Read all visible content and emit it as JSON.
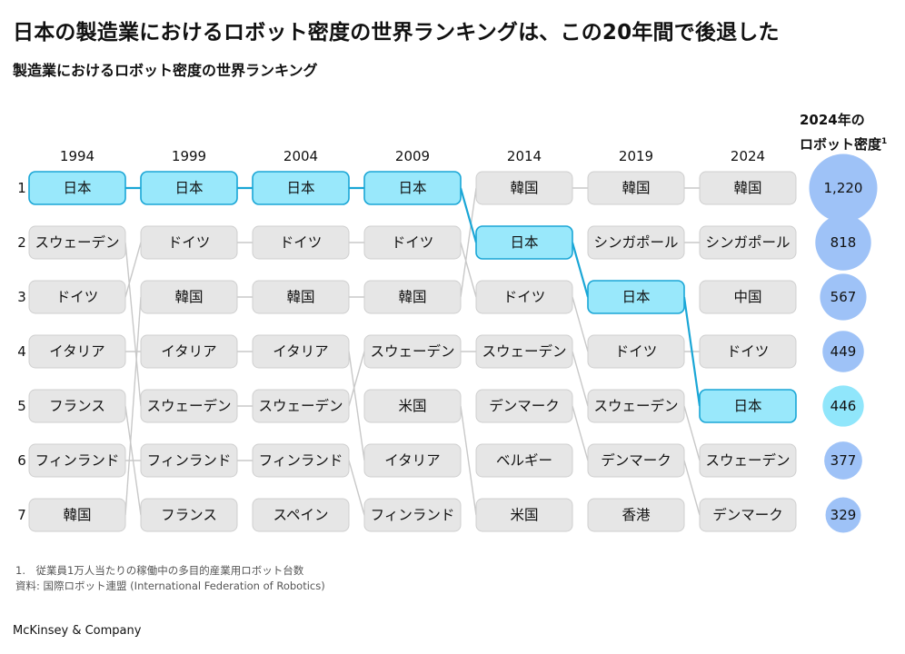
{
  "header": {
    "title": "日本の製造業におけるロボット密度の世界ランキングは、この20年間で後退した",
    "subtitle": "製造業におけるロボット密度の世界ランキング"
  },
  "density_header": {
    "line1": "2024年の",
    "line2": "ロボット密度",
    "footnote_mark": "1"
  },
  "footnotes": {
    "note1": "1.　従業員1万人当たりの稼働中の多目的産業用ロボット台数",
    "source": "資料: 国際ロボット連盟 (International Federation of Robotics)"
  },
  "brand": "McKinsey & Company",
  "colors": {
    "highlight_fill": "#99e8fb",
    "highlight_stroke": "#1aa6d6",
    "box_fill": "#e6e6e6",
    "box_stroke": "#cfcfcf",
    "connector": "#c8c8c8",
    "bubble_blue": "#9ec2f7",
    "bubble_japan": "#90e6fb"
  },
  "chart_data": {
    "type": "table",
    "highlight": "日本",
    "years": [
      "1994",
      "1999",
      "2004",
      "2009",
      "2014",
      "2019",
      "2024"
    ],
    "ranks": [
      "1",
      "2",
      "3",
      "4",
      "5",
      "6",
      "7"
    ],
    "rankings": {
      "1994": [
        "日本",
        "スウェーデン",
        "ドイツ",
        "イタリア",
        "フランス",
        "フィンランド",
        "韓国"
      ],
      "1999": [
        "日本",
        "ドイツ",
        "韓国",
        "イタリア",
        "スウェーデン",
        "フィンランド",
        "フランス"
      ],
      "2004": [
        "日本",
        "ドイツ",
        "韓国",
        "イタリア",
        "スウェーデン",
        "フィンランド",
        "スペイン"
      ],
      "2009": [
        "日本",
        "ドイツ",
        "韓国",
        "スウェーデン",
        "米国",
        "イタリア",
        "フィンランド"
      ],
      "2014": [
        "韓国",
        "日本",
        "ドイツ",
        "スウェーデン",
        "デンマーク",
        "ベルギー",
        "米国"
      ],
      "2019": [
        "韓国",
        "シンガポール",
        "日本",
        "ドイツ",
        "スウェーデン",
        "デンマーク",
        "香港"
      ],
      "2024": [
        "韓国",
        "シンガポール",
        "中国",
        "ドイツ",
        "日本",
        "スウェーデン",
        "デンマーク"
      ]
    },
    "density_2024": {
      "countries": [
        "韓国",
        "シンガポール",
        "中国",
        "ドイツ",
        "日本",
        "スウェーデン",
        "デンマーク"
      ],
      "values": [
        1220,
        818,
        567,
        449,
        446,
        377,
        329
      ],
      "labels": [
        "1,220",
        "818",
        "567",
        "449",
        "446",
        "377",
        "329"
      ]
    }
  }
}
